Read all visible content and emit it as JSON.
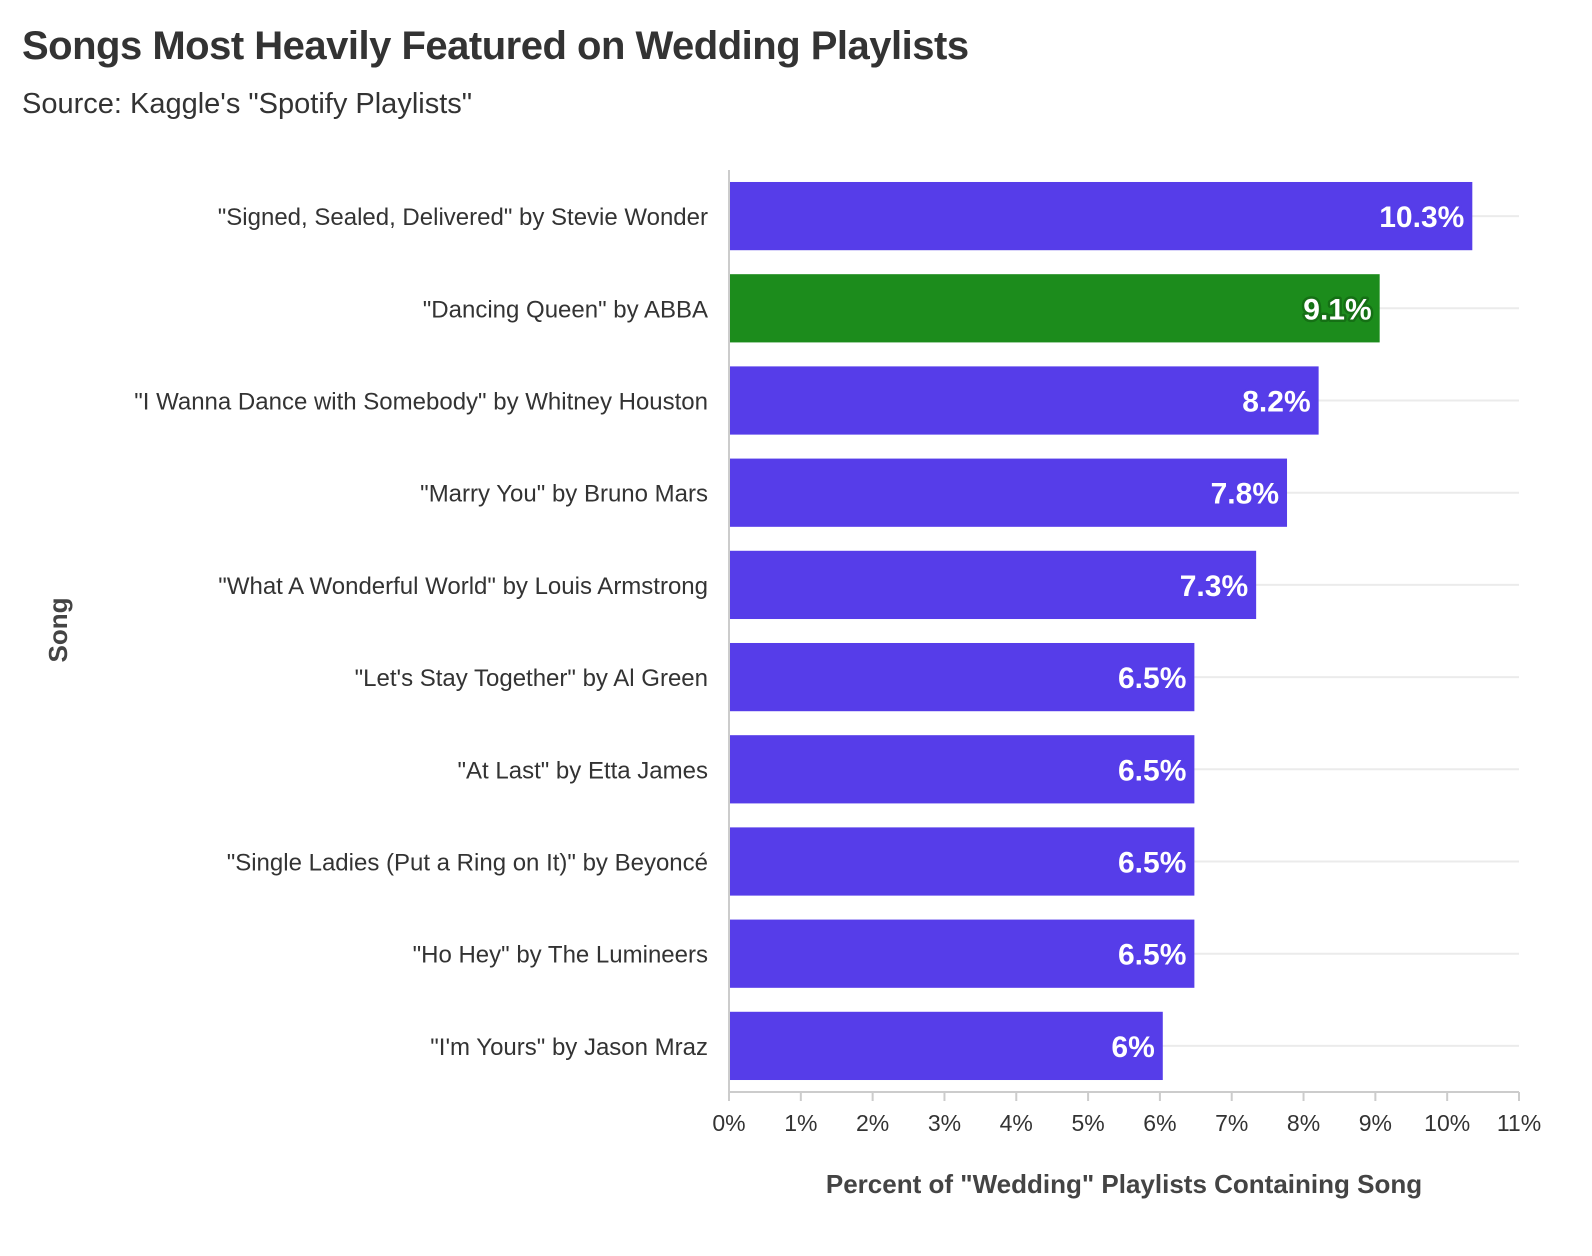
{
  "chart_data": {
    "type": "bar",
    "orientation": "horizontal",
    "title": "Songs Most Heavily Featured on Wedding Playlists",
    "subtitle": "Source: Kaggle's \"Spotify Playlists\"",
    "xlabel": "Percent of \"Wedding\" Playlists Containing Song",
    "ylabel": "Song",
    "xlim": [
      0,
      11
    ],
    "x_ticks": [
      "0%",
      "1%",
      "2%",
      "3%",
      "4%",
      "5%",
      "6%",
      "7%",
      "8%",
      "9%",
      "10%",
      "11%"
    ],
    "grid": "horizontal",
    "legend": "none",
    "categories": [
      "\"Signed, Sealed, Delivered\" by Stevie Wonder",
      "\"Dancing Queen\" by ABBA",
      "\"I Wanna Dance with Somebody\" by Whitney Houston",
      "\"Marry You\" by Bruno Mars",
      "\"What A Wonderful World\" by Louis Armstrong",
      "\"Let's Stay Together\" by Al Green",
      "\"At Last\" by Etta James",
      "\"Single Ladies (Put a Ring on It)\" by Beyoncé",
      "\"Ho Hey\" by The Lumineers",
      "\"I'm Yours\" by Jason Mraz"
    ],
    "values": [
      10.35,
      9.06,
      8.21,
      7.77,
      7.34,
      6.48,
      6.48,
      6.48,
      6.48,
      6.04
    ],
    "value_labels": [
      "10.3%",
      "9.1%",
      "8.2%",
      "7.8%",
      "7.3%",
      "6.5%",
      "6.5%",
      "6.5%",
      "6.5%",
      "6%"
    ],
    "highlight_index": 1,
    "colors": {
      "default_bar": "#563de9",
      "highlight_bar": "#1c8c1c",
      "default_label_outline": "#563de9",
      "highlight_label_outline": "#157015",
      "gridline": "#ebebeb",
      "axis": "#cccccc"
    }
  }
}
